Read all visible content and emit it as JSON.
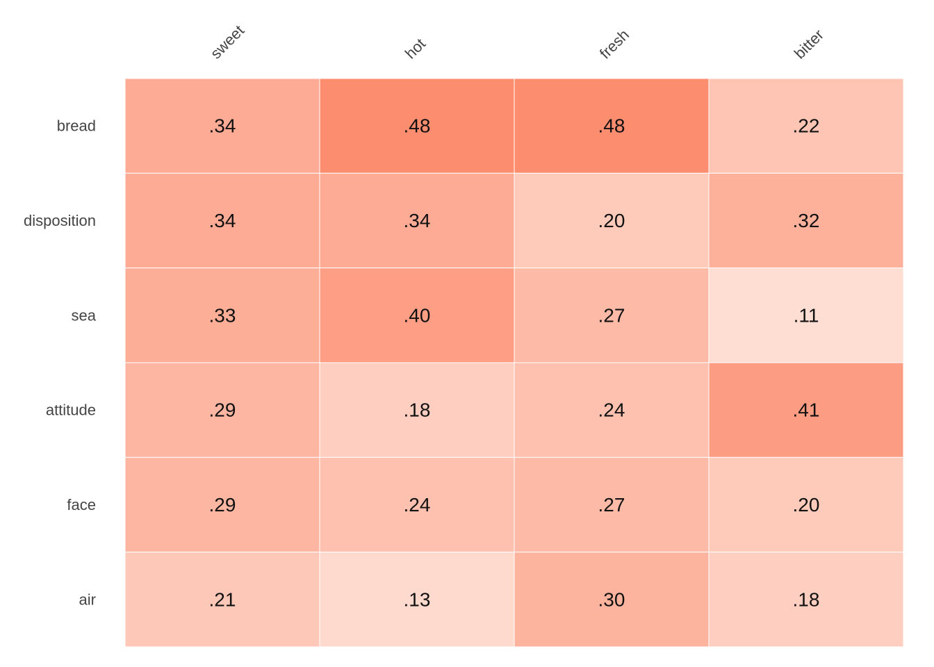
{
  "chart_data": {
    "type": "heatmap",
    "columns": [
      "sweet",
      "hot",
      "fresh",
      "bitter"
    ],
    "rows": [
      "bread",
      "disposition",
      "sea",
      "attitude",
      "face",
      "air"
    ],
    "values": [
      [
        0.34,
        0.48,
        0.48,
        0.22
      ],
      [
        0.34,
        0.34,
        0.2,
        0.32
      ],
      [
        0.33,
        0.4,
        0.27,
        0.11
      ],
      [
        0.29,
        0.18,
        0.24,
        0.41
      ],
      [
        0.29,
        0.24,
        0.27,
        0.2
      ],
      [
        0.21,
        0.13,
        0.3,
        0.18
      ]
    ],
    "value_labels": [
      [
        ".34",
        ".48",
        ".48",
        ".22"
      ],
      [
        ".34",
        ".34",
        ".20",
        ".32"
      ],
      [
        ".33",
        ".40",
        ".27",
        ".11"
      ],
      [
        ".29",
        ".18",
        ".24",
        ".41"
      ],
      [
        ".29",
        ".24",
        ".27",
        ".20"
      ],
      [
        ".21",
        ".13",
        ".30",
        ".18"
      ]
    ],
    "color_low": "#fff5f0",
    "color_high": "#fc8d6f",
    "grid_color": "#ffffff",
    "legend": "none"
  }
}
